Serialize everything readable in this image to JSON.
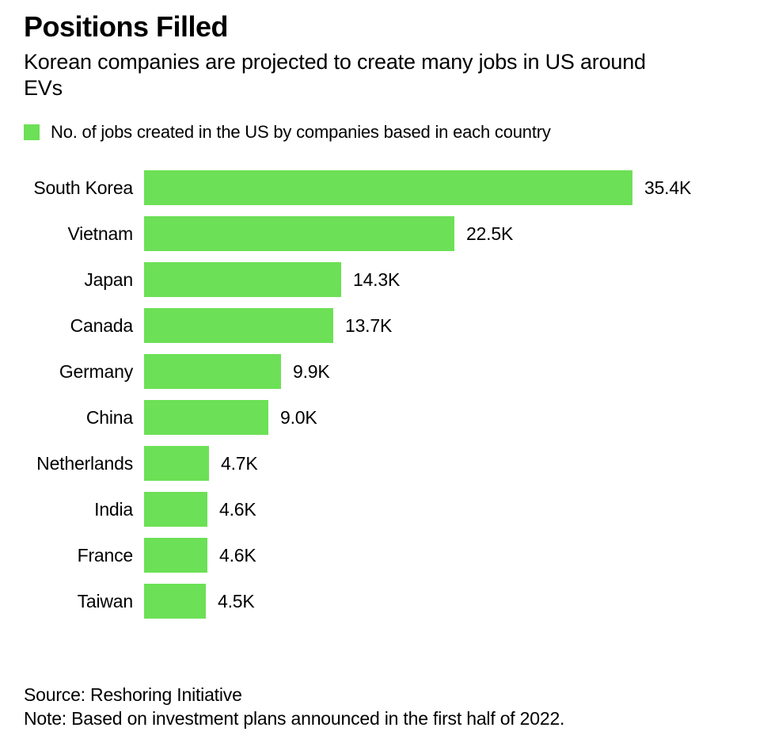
{
  "header": {
    "title": "Positions Filled",
    "subtitle_lines": [
      "Korean companies are projected to create many jobs in US around",
      "EVs"
    ]
  },
  "legend": {
    "swatch_color": "#6ce056",
    "label": "No. of jobs created in the US by companies based in each country"
  },
  "chart_data": {
    "type": "bar",
    "orientation": "horizontal",
    "title": "Positions Filled",
    "series_label": "No. of jobs created in the US by companies based in each country",
    "categories": [
      "South Korea",
      "Vietnam",
      "Japan",
      "Canada",
      "Germany",
      "China",
      "Netherlands",
      "India",
      "France",
      "Taiwan"
    ],
    "values": [
      35.4,
      22.5,
      14.3,
      13.7,
      9.9,
      9.0,
      4.7,
      4.6,
      4.6,
      4.5
    ],
    "value_labels": [
      "35.4K",
      "22.5K",
      "14.3K",
      "13.7K",
      "9.9K",
      "9.0K",
      "4.7K",
      "4.6K",
      "4.6K",
      "4.5K"
    ],
    "unit": "K (thousands of jobs)",
    "xlim": [
      0,
      35.4
    ],
    "bar_color": "#6ce056",
    "grid": false,
    "value_label_position": "end-of-bar"
  },
  "footer": {
    "source": "Source: Reshoring Initiative",
    "note": "Note: Based on investment plans announced in the first half of 2022."
  }
}
